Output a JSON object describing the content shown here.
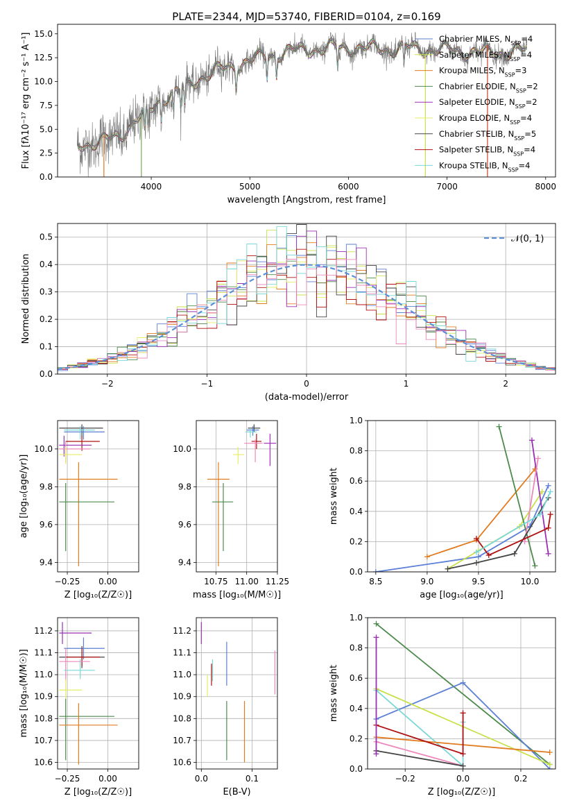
{
  "chart_data": [
    {
      "id": "spectrum",
      "type": "line",
      "title": "PLATE=2344, MJD=53740, FIBERID=0104, z=0.169",
      "xlabel": "wavelength [Angstrom, rest frame]",
      "ylabel": "Flux [fλ10⁻¹⁷ erg cm⁻² s⁻¹ A⁻¹]",
      "xlim": [
        3050,
        8100
      ],
      "ylim": [
        0,
        16
      ],
      "xticks": [
        4000,
        5000,
        6000,
        7000,
        8000
      ],
      "xtick_labels": [
        "4000",
        "5000",
        "6000",
        "7000",
        "8000"
      ],
      "yticks": [
        0,
        2.5,
        5,
        7.5,
        10,
        12.5,
        15
      ],
      "ytick_labels": [
        "0.0",
        "2.5",
        "5.0",
        "7.5",
        "10.0",
        "12.5",
        "15.0"
      ],
      "grid": false,
      "legend_position": "right",
      "data_continuum": {
        "x": [
          3250,
          3500,
          3700,
          3850,
          3950,
          4100,
          4300,
          4500,
          4700,
          5000,
          5300,
          5600,
          6000,
          6300,
          6600,
          7000,
          7400,
          7800
        ],
        "y": [
          3.5,
          3.6,
          4.5,
          6.0,
          6.5,
          8.3,
          9.0,
          10.5,
          11.2,
          12.2,
          13.0,
          13.4,
          13.6,
          13.4,
          13.5,
          13.3,
          13.0,
          13.2
        ]
      },
      "spikes": [
        {
          "x": 3520,
          "y": 0.0,
          "color": "#dd7722"
        },
        {
          "x": 3900,
          "y": 0.0,
          "color": "#77aa55"
        },
        {
          "x": 6780,
          "y": 0.0,
          "color": "#ccdd44"
        },
        {
          "x": 7410,
          "y": 0.0,
          "color": "#cc4422"
        }
      ],
      "series": [
        {
          "name": "Chabrier MILES, N",
          "sub": "SSP",
          "suffix": "=4",
          "color": "#5b7fd6"
        },
        {
          "name": "Salpeter MILES, N",
          "sub": "SSP",
          "suffix": "=4",
          "color": "#c8e04a"
        },
        {
          "name": "Kroupa MILES, N",
          "sub": "SSP",
          "suffix": "=3",
          "color": "#e07b20"
        },
        {
          "name": "Chabrier ELODIE, N",
          "sub": "SSP",
          "suffix": "=2",
          "color": "#4c8a4c"
        },
        {
          "name": "Salpeter ELODIE, N",
          "sub": "SSP",
          "suffix": "=2",
          "color": "#9a2fb5"
        },
        {
          "name": "Kroupa ELODIE, N",
          "sub": "SSP",
          "suffix": "=4",
          "color": "#e6ee66"
        },
        {
          "name": "Chabrier STELIB, N",
          "sub": "SSP",
          "suffix": "=5",
          "color": "#444444"
        },
        {
          "name": "Salpeter STELIB, N",
          "sub": "SSP",
          "suffix": "=4",
          "color": "#b01010"
        },
        {
          "name": "Kroupa STELIB, N",
          "sub": "SSP",
          "suffix": "=4",
          "color": "#7ad8d8"
        }
      ]
    },
    {
      "id": "residuals",
      "type": "histogram",
      "xlabel": "(data-model)/error",
      "ylabel": "Normed distribution",
      "xlim": [
        -2.5,
        2.5
      ],
      "ylim": [
        0,
        0.55
      ],
      "xticks": [
        -2,
        -1,
        0,
        1,
        2
      ],
      "xtick_labels": [
        "−2",
        "−1",
        "0",
        "1",
        "2"
      ],
      "yticks": [
        0,
        0.1,
        0.2,
        0.3,
        0.4,
        0.5
      ],
      "ytick_labels": [
        "0.0",
        "0.1",
        "0.2",
        "0.3",
        "0.4",
        "0.5"
      ],
      "grid": true,
      "legend_position": "top-right",
      "reference_curve": {
        "name": "𝒩(0, 1)",
        "color": "#5b8fd6",
        "style": "dashed"
      },
      "bin_width": 0.1,
      "series_colors": [
        "#5b7fd6",
        "#c8e04a",
        "#e07b20",
        "#4c8a4c",
        "#9a2fb5",
        "#e6ee66",
        "#444444",
        "#b01010",
        "#7ad8d8",
        "#ee88bb"
      ]
    },
    {
      "id": "age_vs_Z",
      "type": "errorbar",
      "xlabel": "Z [log₁₀(Z/Z☉)]",
      "ylabel": "age  [log₁₀(age/yr)]",
      "xlim": [
        -0.31,
        0.19
      ],
      "ylim": [
        9.35,
        10.15
      ],
      "xticks": [
        -0.25,
        0.0
      ],
      "xtick_labels": [
        "−0.25",
        "0.00"
      ],
      "yticks": [
        9.4,
        9.6,
        9.8,
        10.0
      ],
      "ytick_labels": [
        "9.4",
        "9.6",
        "9.8",
        "10.0"
      ],
      "grid": true,
      "points": [
        {
          "x": -0.16,
          "xerr": [
            0.14,
            0.13
          ],
          "y": 10.11,
          "yerr": [
            0.05,
            0.02
          ],
          "color": "#444444"
        },
        {
          "x": -0.15,
          "xerr": [
            0.12,
            0.13
          ],
          "y": 10.09,
          "yerr": [
            0.04,
            0.03
          ],
          "color": "#5b7fd6"
        },
        {
          "x": -0.17,
          "xerr": [
            0.1,
            0.09
          ],
          "y": 10.1,
          "yerr": [
            0.05,
            0.02
          ],
          "color": "#7ad8d8"
        },
        {
          "x": -0.16,
          "xerr": [
            0.1,
            0.11
          ],
          "y": 10.04,
          "yerr": [
            0.05,
            0.03
          ],
          "color": "#b01010"
        },
        {
          "x": -0.27,
          "xerr": [
            0.03,
            0.17
          ],
          "y": 10.02,
          "yerr": [
            0.06,
            0.05
          ],
          "color": "#9a2fb5"
        },
        {
          "x": -0.26,
          "xerr": [
            0.04,
            0.15
          ],
          "y": 10.0,
          "yerr": [
            0.07,
            0.04
          ],
          "color": "#ee88bb"
        },
        {
          "x": -0.26,
          "xerr": [
            0.04,
            0.1
          ],
          "y": 9.97,
          "yerr": [
            0.05,
            0.04
          ],
          "color": "#e6ee66"
        },
        {
          "x": -0.18,
          "xerr": [
            0.12,
            0.24
          ],
          "y": 9.84,
          "yerr": [
            0.46,
            0.09
          ],
          "color": "#e07b20"
        },
        {
          "x": -0.26,
          "xerr": [
            0.04,
            0.3
          ],
          "y": 9.72,
          "yerr": [
            0.26,
            0.1
          ],
          "color": "#4c8a4c"
        }
      ]
    },
    {
      "id": "age_vs_mass",
      "type": "errorbar",
      "xlabel": "mass [log₁₀(M/M☉)]",
      "xlim": [
        10.59,
        11.25
      ],
      "ylim": [
        9.35,
        10.15
      ],
      "xticks": [
        10.75,
        11.0,
        11.25
      ],
      "xtick_labels": [
        "10.75",
        "11.00",
        "11.25"
      ],
      "yticks": [
        9.4,
        9.6,
        9.8,
        10.0
      ],
      "ytick_labels": [
        "9.4",
        "9.6",
        "9.8",
        "10.0"
      ],
      "grid": true,
      "points": [
        {
          "x": 11.06,
          "xerr": [
            0.05,
            0.05
          ],
          "y": 10.11,
          "yerr": [
            0.02,
            0.02
          ],
          "color": "#444444"
        },
        {
          "x": 11.05,
          "xerr": [
            0.05,
            0.05
          ],
          "y": 10.1,
          "yerr": [
            0.03,
            0.02
          ],
          "color": "#5b7fd6"
        },
        {
          "x": 11.03,
          "xerr": [
            0.04,
            0.05
          ],
          "y": 10.09,
          "yerr": [
            0.03,
            0.02
          ],
          "color": "#7ad8d8"
        },
        {
          "x": 11.08,
          "xerr": [
            0.04,
            0.04
          ],
          "y": 10.04,
          "yerr": [
            0.04,
            0.04
          ],
          "color": "#b01010"
        },
        {
          "x": 11.19,
          "xerr": [
            0.05,
            0.05
          ],
          "y": 10.03,
          "yerr": [
            0.12,
            0.05
          ],
          "color": "#9a2fb5"
        },
        {
          "x": 11.07,
          "xerr": [
            0.09,
            0.06
          ],
          "y": 10.03,
          "yerr": [
            0.1,
            0.02
          ],
          "color": "#ee88bb"
        },
        {
          "x": 10.93,
          "xerr": [
            0.04,
            0.05
          ],
          "y": 9.97,
          "yerr": [
            0.05,
            0.04
          ],
          "color": "#e6ee66"
        },
        {
          "x": 10.77,
          "xerr": [
            0.09,
            0.09
          ],
          "y": 9.84,
          "yerr": [
            0.46,
            0.09
          ],
          "color": "#e07b20"
        },
        {
          "x": 10.81,
          "xerr": [
            0.09,
            0.08
          ],
          "y": 9.72,
          "yerr": [
            0.26,
            0.1
          ],
          "color": "#4c8a4c"
        }
      ]
    },
    {
      "id": "massweight_vs_age",
      "type": "line",
      "xlabel": "age  [log₁₀(age/yr)]",
      "ylabel": "mass weight",
      "xlim": [
        8.42,
        10.25
      ],
      "ylim": [
        0,
        1
      ],
      "xticks": [
        8.5,
        9.0,
        9.5,
        10.0
      ],
      "xtick_labels": [
        "8.5",
        "9.0",
        "9.5",
        "10.0"
      ],
      "yticks": [
        0,
        0.2,
        0.4,
        0.6,
        0.8,
        1.0
      ],
      "ytick_labels": [
        "0.0",
        "0.2",
        "0.4",
        "0.6",
        "0.8",
        "1.0"
      ],
      "grid": true,
      "series": [
        {
          "color": "#5b7fd6",
          "x": [
            8.5,
            9.5,
            10.0,
            10.18
          ],
          "y": [
            0.0,
            0.1,
            0.3,
            0.57
          ]
        },
        {
          "color": "#c8e04a",
          "x": [
            9.2,
            9.5,
            9.9,
            10.12
          ],
          "y": [
            0.02,
            0.14,
            0.3,
            0.53
          ]
        },
        {
          "color": "#e07b20",
          "x": [
            9.0,
            9.48,
            10.05
          ],
          "y": [
            0.1,
            0.21,
            0.68
          ]
        },
        {
          "color": "#4c8a4c",
          "x": [
            9.7,
            10.05
          ],
          "y": [
            0.96,
            0.04
          ]
        },
        {
          "color": "#9a2fb5",
          "x": [
            10.02,
            10.18
          ],
          "y": [
            0.87,
            0.12
          ]
        },
        {
          "color": "#ee88bb",
          "x": [
            9.95,
            10.08
          ],
          "y": [
            0.2,
            0.75
          ]
        },
        {
          "color": "#444444",
          "x": [
            9.2,
            9.48,
            9.85,
            10.18
          ],
          "y": [
            0.02,
            0.06,
            0.12,
            0.49
          ]
        },
        {
          "color": "#b01010",
          "x": [
            9.48,
            9.6,
            10.18,
            10.2
          ],
          "y": [
            0.22,
            0.11,
            0.29,
            0.38
          ]
        },
        {
          "color": "#7ad8d8",
          "x": [
            9.48,
            10.1,
            10.2
          ],
          "y": [
            0.13,
            0.38,
            0.53
          ]
        }
      ]
    },
    {
      "id": "mass_vs_Z",
      "type": "errorbar",
      "xlabel": "Z [log₁₀(Z/Z☉)]",
      "ylabel": "mass [log₁₀(M/M☉)]",
      "xlim": [
        -0.31,
        0.19
      ],
      "ylim": [
        10.57,
        11.26
      ],
      "xticks": [
        -0.25,
        0.0
      ],
      "xtick_labels": [
        "−0.25",
        "0.00"
      ],
      "yticks": [
        10.6,
        10.7,
        10.8,
        10.9,
        11.0,
        11.1,
        11.2
      ],
      "ytick_labels": [
        "10.6",
        "10.7",
        "10.8",
        "10.9",
        "11.0",
        "11.1",
        "11.2"
      ],
      "grid": true,
      "points": [
        {
          "x": -0.28,
          "xerr": [
            0.02,
            0.18
          ],
          "y": 11.19,
          "yerr": [
            0.05,
            0.05
          ],
          "color": "#9a2fb5"
        },
        {
          "x": -0.15,
          "xerr": [
            0.12,
            0.13
          ],
          "y": 11.12,
          "yerr": [
            0.05,
            0.05
          ],
          "color": "#5b7fd6"
        },
        {
          "x": -0.16,
          "xerr": [
            0.14,
            0.14
          ],
          "y": 11.08,
          "yerr": [
            0.05,
            0.05
          ],
          "color": "#444444"
        },
        {
          "x": -0.16,
          "xerr": [
            0.1,
            0.11
          ],
          "y": 11.08,
          "yerr": [
            0.04,
            0.04
          ],
          "color": "#b01010"
        },
        {
          "x": -0.26,
          "xerr": [
            0.04,
            0.15
          ],
          "y": 11.06,
          "yerr": [
            0.09,
            0.06
          ],
          "color": "#ee88bb"
        },
        {
          "x": -0.17,
          "xerr": [
            0.1,
            0.09
          ],
          "y": 11.02,
          "yerr": [
            0.04,
            0.05
          ],
          "color": "#7ad8d8"
        },
        {
          "x": -0.26,
          "xerr": [
            0.04,
            0.1
          ],
          "y": 10.93,
          "yerr": [
            0.04,
            0.05
          ],
          "color": "#e6ee66"
        },
        {
          "x": -0.26,
          "xerr": [
            0.04,
            0.3
          ],
          "y": 10.81,
          "yerr": [
            0.2,
            0.08
          ],
          "color": "#4c8a4c"
        },
        {
          "x": -0.18,
          "xerr": [
            0.12,
            0.24
          ],
          "y": 10.77,
          "yerr": [
            0.18,
            0.1
          ],
          "color": "#e07b20"
        }
      ]
    },
    {
      "id": "mass_vs_ebv",
      "type": "errorbar",
      "xlabel": "E(B-V)",
      "xlim": [
        -0.01,
        0.15
      ],
      "ylim": [
        10.57,
        11.26
      ],
      "xticks": [
        0.0,
        0.1
      ],
      "xtick_labels": [
        "0.0",
        "0.1"
      ],
      "yticks": [
        10.6,
        10.7,
        10.8,
        10.9,
        11.0,
        11.1,
        11.2
      ],
      "ytick_labels": [
        "10.6",
        "10.7",
        "10.8",
        "10.9",
        "11.0",
        "11.1",
        "11.2"
      ],
      "grid": true,
      "points": [
        {
          "x": 0.0,
          "y": 11.19,
          "yerr": [
            0.05,
            0.05
          ],
          "color": "#9a2fb5"
        },
        {
          "x": 0.05,
          "y": 11.08,
          "yerr": [
            0.13,
            0.07
          ],
          "color": "#5b7fd6"
        },
        {
          "x": 0.145,
          "y": 11.0,
          "yerr": [
            0.09,
            0.11
          ],
          "color": "#ee88bb"
        },
        {
          "x": 0.02,
          "y": 11.0,
          "yerr": [
            0.05,
            0.05
          ],
          "color": "#b01010"
        },
        {
          "x": 0.022,
          "y": 11.02,
          "yerr": [
            0.05,
            0.05
          ],
          "color": "#7ad8d8"
        },
        {
          "x": 0.012,
          "y": 10.95,
          "yerr": [
            0.05,
            0.05
          ],
          "color": "#e6ee66"
        },
        {
          "x": 0.05,
          "y": 10.74,
          "yerr": [
            0.13,
            0.14
          ],
          "color": "#4c8a4c"
        },
        {
          "x": 0.085,
          "y": 10.74,
          "yerr": [
            0.14,
            0.14
          ],
          "color": "#e07b20"
        }
      ]
    },
    {
      "id": "massweight_vs_Z",
      "type": "line",
      "xlabel": "Z [log₁₀(Z/Z☉)]",
      "ylabel": "mass weight",
      "xlim": [
        -0.33,
        0.32
      ],
      "ylim": [
        0,
        1
      ],
      "xticks": [
        -0.2,
        0.0,
        0.2
      ],
      "xtick_labels": [
        "−0.2",
        "0.0",
        "0.2"
      ],
      "yticks": [
        0,
        0.2,
        0.4,
        0.6,
        0.8,
        1.0
      ],
      "ytick_labels": [
        "0.0",
        "0.2",
        "0.4",
        "0.6",
        "0.8",
        "1.0"
      ],
      "grid": true,
      "series": [
        {
          "color": "#4c8a4c",
          "x": [
            -0.3,
            0.3
          ],
          "y": [
            0.96,
            0.03
          ]
        },
        {
          "color": "#5b7fd6",
          "x": [
            -0.3,
            0.0,
            0.3
          ],
          "y": [
            0.33,
            0.57,
            0.0
          ]
        },
        {
          "color": "#c8e04a",
          "x": [
            -0.3,
            0.3
          ],
          "y": [
            0.53,
            0.03
          ]
        },
        {
          "color": "#7ad8d8",
          "x": [
            -0.3,
            0.0,
            0.0
          ],
          "y": [
            0.52,
            0.02,
            0.31
          ]
        },
        {
          "color": "#e07b20",
          "x": [
            -0.3,
            0.3
          ],
          "y": [
            0.21,
            0.11
          ]
        },
        {
          "color": "#b01010",
          "x": [
            -0.3,
            0.0,
            0.0
          ],
          "y": [
            0.29,
            0.1,
            0.37
          ]
        },
        {
          "color": "#ee88bb",
          "x": [
            -0.3,
            0.0
          ],
          "y": [
            0.18,
            0.02
          ]
        },
        {
          "color": "#444444",
          "x": [
            -0.3,
            0.0
          ],
          "y": [
            0.12,
            0.02
          ]
        },
        {
          "color": "#9a2fb5",
          "x": [
            -0.3,
            -0.3
          ],
          "y": [
            0.1,
            0.87
          ]
        }
      ]
    }
  ]
}
